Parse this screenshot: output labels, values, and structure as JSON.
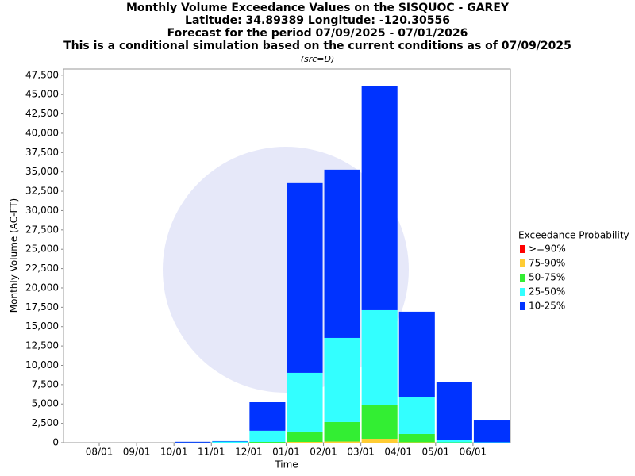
{
  "chart_data": {
    "type": "bar",
    "stacked": true,
    "title": "Monthly Volume Exceedance Values on the SISQUOC - GAREY",
    "subtitles": [
      "Latitude: 34.89389 Longitude: -120.30556",
      "Forecast for the period 07/09/2025 - 07/01/2026",
      "This is a conditional simulation based on the current conditions as of 07/09/2025"
    ],
    "source": "(src=D)",
    "x_label": "Time",
    "y_label": "Monthly Volume (AC-FT)",
    "legend_title": "Exceedance Probability",
    "categories": [
      null,
      null,
      null,
      null,
      null,
      null,
      null,
      null,
      null,
      null,
      null,
      null
    ],
    "xticks": [
      "08/01",
      "09/01",
      "10/01",
      "11/01",
      "12/01",
      "01/01",
      "02/01",
      "03/01",
      "04/01",
      "05/01",
      "06/01"
    ],
    "series": [
      {
        "name": ">=90%",
        "color": "#ff0000",
        "values": [
          0,
          0,
          0,
          0,
          0,
          0,
          0,
          0,
          0,
          0,
          0,
          0
        ]
      },
      {
        "name": "75-90%",
        "color": "#ffcc33",
        "values": [
          0,
          0,
          0,
          0,
          0,
          0,
          100,
          150,
          510,
          50,
          0,
          0
        ]
      },
      {
        "name": "50-75%",
        "color": "#33ee33",
        "values": [
          0,
          0,
          0,
          0,
          0,
          100,
          1340,
          2520,
          4310,
          1080,
          50,
          0
        ]
      },
      {
        "name": "25-50%",
        "color": "#33ffff",
        "values": [
          0,
          0,
          0,
          20,
          150,
          1450,
          7590,
          10870,
          12310,
          4720,
          360,
          50
        ]
      },
      {
        "name": "10-25%",
        "color": "#0033ff",
        "values": [
          0,
          0,
          0,
          100,
          60,
          3680,
          24520,
          21750,
          28930,
          11080,
          7390,
          2820
        ]
      }
    ],
    "ylim": [
      0,
      48300
    ],
    "yticks": [
      0,
      {
        "value": 2500,
        "label": "2,500"
      },
      {
        "value": 5000,
        "label": "5,000"
      },
      {
        "value": 7500,
        "label": "7,500"
      },
      {
        "value": 10000,
        "label": "10,000"
      },
      {
        "value": 12500,
        "label": "12,500"
      },
      {
        "value": 15000,
        "label": "15,000"
      },
      {
        "value": 17500,
        "label": "17,500"
      },
      {
        "value": 20000,
        "label": "20,000"
      },
      {
        "value": 22500,
        "label": "22,500"
      },
      {
        "value": 25000,
        "label": "25,000"
      },
      {
        "value": 27500,
        "label": "27,500"
      },
      {
        "value": 30000,
        "label": "30,000"
      },
      {
        "value": 32500,
        "label": "32,500"
      },
      {
        "value": 35000,
        "label": "35,000"
      },
      {
        "value": 37500,
        "label": "37,500"
      },
      {
        "value": 40000,
        "label": "40,000"
      },
      {
        "value": 42500,
        "label": "42,500"
      },
      {
        "value": 45000,
        "label": "45,000"
      },
      {
        "value": 47500,
        "label": "47,500"
      }
    ],
    "grid": false,
    "legend_position": "right"
  }
}
